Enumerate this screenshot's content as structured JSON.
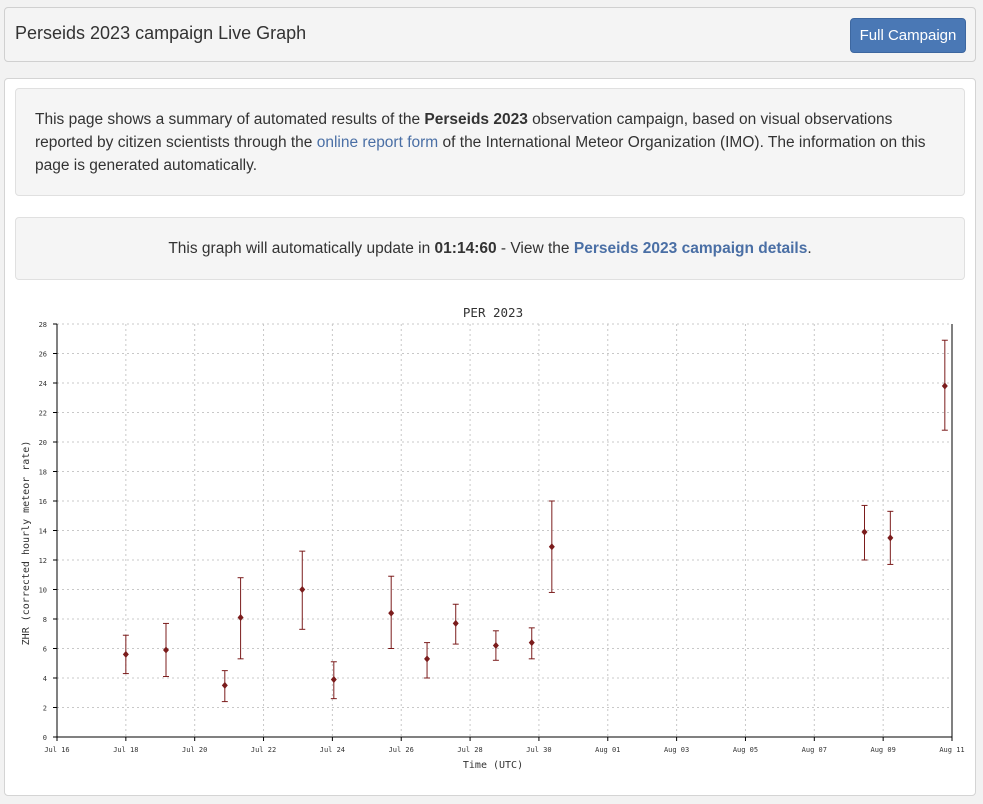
{
  "header": {
    "title": "Perseids 2023 campaign Live Graph",
    "button_label": "Full Campaign"
  },
  "intro": {
    "t1": "This page shows a summary of automated results of the ",
    "b1": "Perseids 2023",
    "t2": " observation campaign, based on visual observations reported by citizen scientists through the ",
    "link1": "online report form",
    "t3": " of the International Meteor Organization (IMO). The information on this page is generated automatically."
  },
  "update": {
    "t1": "This graph will automatically update in ",
    "countdown": "01:14:60",
    "t2": " - View the ",
    "link": "Perseids 2023 campaign details",
    "t3": "."
  },
  "colors": {
    "data": "#7b1c1c",
    "grid": "#c8c8c8",
    "link": "#4a6fa5",
    "button": "#4a78b5"
  },
  "chart_data": {
    "type": "scatter",
    "title": "PER 2023",
    "xlabel": "Time (UTC)",
    "ylabel": "ZHR (corrected hourly meteor rate)",
    "ylim": [
      0,
      28
    ],
    "xlim": [
      "2023-07-16",
      "2023-08-11"
    ],
    "grid": true,
    "error_bars": true,
    "x_ticks": [
      "Jul 16",
      "Jul 18",
      "Jul 20",
      "Jul 22",
      "Jul 24",
      "Jul 26",
      "Jul 28",
      "Jul 30",
      "Aug 01",
      "Aug 03",
      "Aug 05",
      "Aug 07",
      "Aug 09",
      "Aug 11"
    ],
    "y_ticks": [
      "0",
      "2",
      "4",
      "6",
      "8",
      "10",
      "12",
      "14",
      "16",
      "18",
      "20",
      "22",
      "24",
      "26",
      "28"
    ],
    "points": [
      {
        "x": "2023-07-18 00:00",
        "y": 5.6,
        "lo": 4.3,
        "hi": 6.9
      },
      {
        "x": "2023-07-19 04:00",
        "y": 5.9,
        "lo": 4.1,
        "hi": 7.7
      },
      {
        "x": "2023-07-20 21:00",
        "y": 3.5,
        "lo": 2.4,
        "hi": 4.5
      },
      {
        "x": "2023-07-21 08:00",
        "y": 8.1,
        "lo": 5.3,
        "hi": 10.8
      },
      {
        "x": "2023-07-23 03:00",
        "y": 10.0,
        "lo": 7.3,
        "hi": 12.6
      },
      {
        "x": "2023-07-24 01:00",
        "y": 3.9,
        "lo": 2.6,
        "hi": 5.1
      },
      {
        "x": "2023-07-25 17:00",
        "y": 8.4,
        "lo": 6.0,
        "hi": 10.9
      },
      {
        "x": "2023-07-26 18:00",
        "y": 5.3,
        "lo": 4.0,
        "hi": 6.4
      },
      {
        "x": "2023-07-27 14:00",
        "y": 7.7,
        "lo": 6.3,
        "hi": 9.0
      },
      {
        "x": "2023-07-28 18:00",
        "y": 6.2,
        "lo": 5.2,
        "hi": 7.2
      },
      {
        "x": "2023-07-29 19:00",
        "y": 6.4,
        "lo": 5.3,
        "hi": 7.4
      },
      {
        "x": "2023-07-30 09:00",
        "y": 12.9,
        "lo": 9.8,
        "hi": 16.0
      },
      {
        "x": "2023-08-08 11:00",
        "y": 13.9,
        "lo": 12.0,
        "hi": 15.7
      },
      {
        "x": "2023-08-09 05:00",
        "y": 13.5,
        "lo": 11.7,
        "hi": 15.3
      },
      {
        "x": "2023-08-10 19:00",
        "y": 23.8,
        "lo": 20.8,
        "hi": 26.9
      }
    ]
  }
}
